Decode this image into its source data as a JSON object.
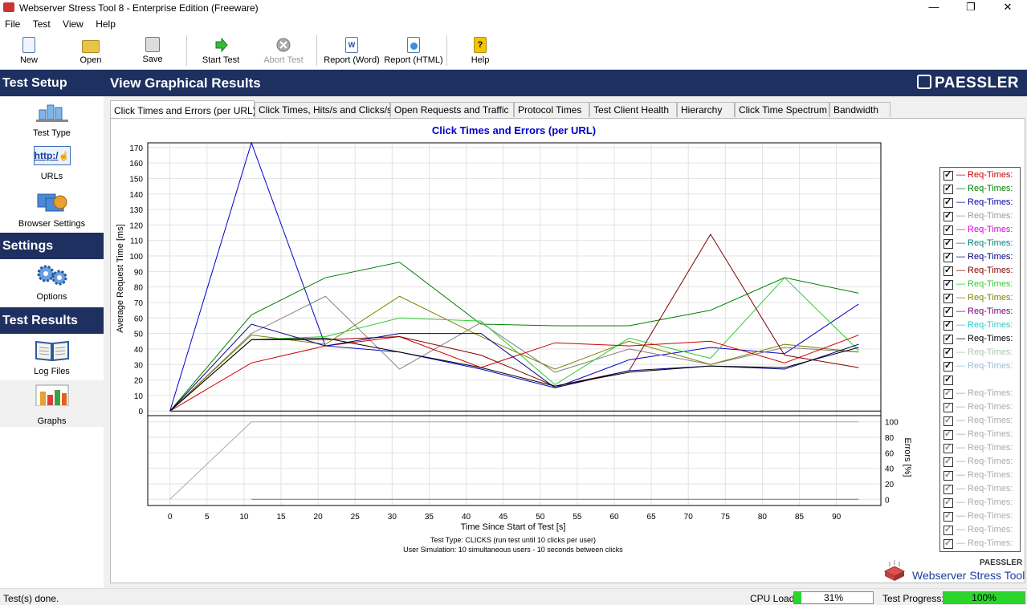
{
  "window": {
    "title": "Webserver Stress Tool 8 - Enterprise Edition (Freeware)"
  },
  "menu": [
    "File",
    "Test",
    "View",
    "Help"
  ],
  "toolbar": {
    "new": "New",
    "open": "Open",
    "save": "Save",
    "start": "Start Test",
    "abort": "Abort Test",
    "report_word": "Report (Word)",
    "report_html": "Report (HTML)",
    "help": "Help"
  },
  "sidebar": {
    "test_setup": "Test Setup",
    "test_type": "Test Type",
    "urls": "URLs",
    "urls_icon_text": "http:/",
    "browser_settings": "Browser Settings",
    "settings": "Settings",
    "options": "Options",
    "test_results": "Test Results",
    "log_files": "Log Files",
    "graphs": "Graphs"
  },
  "header": {
    "title": "View Graphical Results",
    "brand": "PAESSLER"
  },
  "tabs": [
    "Click Times and Errors (per URL)",
    "Click Times, Hits/s and Clicks/s",
    "Open Requests and Traffic",
    "Protocol Times",
    "Test Client Health",
    "Hierarchy",
    "Click Time Spectrum",
    "Bandwidth"
  ],
  "legend": [
    {
      "label": "Req-Times:",
      "color": "#cc0000",
      "checked": true
    },
    {
      "label": "Req-Times:",
      "color": "#008000",
      "checked": true
    },
    {
      "label": "Req-Times:",
      "color": "#0000aa",
      "checked": true
    },
    {
      "label": "Req-Times:",
      "color": "#999999",
      "checked": true
    },
    {
      "label": "Req-Times:",
      "color": "#dd00dd",
      "checked": true
    },
    {
      "label": "Req-Times:",
      "color": "#008080",
      "checked": true
    },
    {
      "label": "Req-Times:",
      "color": "#000080",
      "checked": true
    },
    {
      "label": "Req-Times:",
      "color": "#800000",
      "checked": true
    },
    {
      "label": "Req-Times:",
      "color": "#33cc33",
      "checked": true
    },
    {
      "label": "Req-Times:",
      "color": "#808000",
      "checked": true
    },
    {
      "label": "Req-Times:",
      "color": "#800080",
      "checked": true
    },
    {
      "label": "Req-Times:",
      "color": "#22cccc",
      "checked": true
    },
    {
      "label": "Req-Times:",
      "color": "#000000",
      "checked": true
    },
    {
      "label": "Req-Times:",
      "color": "#aac8aa",
      "checked": true
    },
    {
      "label": "Req-Times:",
      "color": "#99bbdd",
      "checked": true
    },
    {
      "label": "",
      "color": "#000000",
      "checked": true
    },
    {
      "label": "Req-Times:",
      "color": "#aaaaaa",
      "checked": true
    },
    {
      "label": "Req-Times:",
      "color": "#aaaaaa",
      "checked": true
    },
    {
      "label": "Req-Times:",
      "color": "#aaaaaa",
      "checked": true
    },
    {
      "label": "Req-Times:",
      "color": "#aaaaaa",
      "checked": true
    },
    {
      "label": "Req-Times:",
      "color": "#aaaaaa",
      "checked": true
    },
    {
      "label": "Req-Times:",
      "color": "#aaaaaa",
      "checked": true
    },
    {
      "label": "Req-Times:",
      "color": "#aaaaaa",
      "checked": true
    },
    {
      "label": "Req-Times:",
      "color": "#aaaaaa",
      "checked": true
    },
    {
      "label": "Req-Times:",
      "color": "#aaaaaa",
      "checked": true
    },
    {
      "label": "Req-Times:",
      "color": "#aaaaaa",
      "checked": true
    },
    {
      "label": "Req-Times:",
      "color": "#aaaaaa",
      "checked": true
    },
    {
      "label": "Req-Times:",
      "color": "#aaaaaa",
      "checked": true
    }
  ],
  "logo": {
    "brand": "PAESSLER",
    "product": "Webserver Stress Tool"
  },
  "status": {
    "text": "Test(s) done.",
    "cpu_label": "CPU Load:",
    "cpu_value": "31%",
    "cpu_fraction": 0.31,
    "progress_label": "Test Progress:",
    "progress_value": "100%",
    "progress_fraction": 1.0
  },
  "chart_data": {
    "type": "line",
    "title": "Click Times and Errors (per URL)",
    "xlabel": "Time Since Start of Test [s]",
    "ylabel": "Average Request Time [ms]",
    "y2label": "Errors [%]",
    "xlim": [
      -3,
      96
    ],
    "ylim": [
      -3,
      173
    ],
    "y2lim": [
      -8,
      108
    ],
    "xticks": [
      0,
      5,
      10,
      15,
      20,
      25,
      30,
      35,
      40,
      45,
      50,
      55,
      60,
      65,
      70,
      75,
      80,
      85,
      90
    ],
    "yticks": [
      0,
      10,
      20,
      30,
      40,
      50,
      60,
      70,
      80,
      90,
      100,
      110,
      120,
      130,
      140,
      150,
      160,
      170
    ],
    "y2ticks": [
      0,
      20,
      40,
      60,
      80,
      100
    ],
    "footnote1": "Test Type: CLICKS (run test until 10 clicks per user)",
    "footnote2": "User Simulation: 10 simultaneous users - 10 seconds between clicks",
    "x": [
      0,
      11,
      21,
      31,
      42,
      52,
      62,
      73,
      83,
      93
    ],
    "series": [
      {
        "color": "#0000cc",
        "values": [
          0,
          173,
          42,
          38,
          27,
          15,
          33,
          41,
          37,
          69
        ]
      },
      {
        "color": "#008000",
        "values": [
          0,
          62,
          86,
          96,
          56,
          55,
          55,
          65,
          86,
          76
        ]
      },
      {
        "color": "#808080",
        "values": [
          0,
          50,
          74,
          27,
          57,
          25,
          40,
          30,
          41,
          38
        ]
      },
      {
        "color": "#808000",
        "values": [
          0,
          49,
          43,
          74,
          48,
          27,
          45,
          30,
          43,
          38
        ]
      },
      {
        "color": "#33cc33",
        "values": [
          0,
          46,
          48,
          60,
          58,
          17,
          47,
          34,
          86,
          39
        ]
      },
      {
        "color": "#cc0000",
        "values": [
          0,
          31,
          42,
          48,
          28,
          44,
          42,
          45,
          31,
          49
        ]
      },
      {
        "color": "#800000",
        "values": [
          0,
          46,
          46,
          48,
          36,
          16,
          26,
          114,
          36,
          28
        ]
      },
      {
        "color": "#000080",
        "values": [
          0,
          56,
          42,
          50,
          50,
          15,
          26,
          29,
          27,
          43
        ]
      },
      {
        "color": "#000000",
        "values": [
          0,
          46,
          47,
          38,
          28,
          16,
          25,
          29,
          28,
          41
        ]
      }
    ],
    "errors": {
      "color": "#aaaaaa",
      "x": [
        0,
        11,
        93
      ],
      "values": [
        0,
        100,
        100
      ]
    },
    "errors_zero": {
      "color": "#777777",
      "x": [
        11,
        93
      ],
      "values": [
        0,
        0
      ]
    }
  }
}
